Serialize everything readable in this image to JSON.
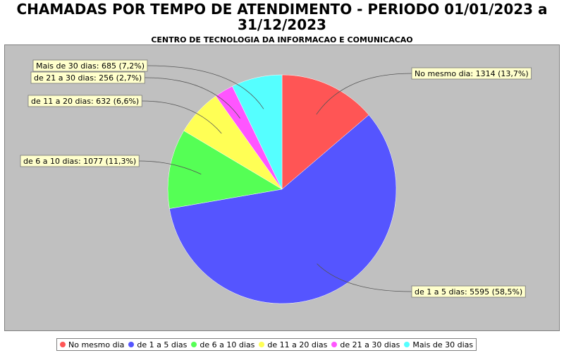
{
  "title": "CHAMADAS POR TEMPO DE ATENDIMENTO - PERIODO 01/01/2023 a 31/12/2023",
  "subtitle": "CENTRO DE TECNOLOGIA DA INFORMACAO E COMUNICACAO",
  "chart_data": {
    "type": "pie",
    "title": "CHAMADAS POR TEMPO DE ATENDIMENTO - PERIODO 01/01/2023 a 31/12/2023",
    "subtitle": "CENTRO DE TECNOLOGIA DA INFORMACAO E COMUNICACAO",
    "legend_position": "bottom",
    "slices": [
      {
        "name": "No mesmo dia",
        "value": 1314,
        "label": "No mesmo dia: 1314 (13,7%)",
        "color": "#ff5555"
      },
      {
        "name": "de 1 a 5 dias",
        "value": 5595,
        "label": "de 1 a 5 dias: 5595 (58,5%)",
        "color": "#5555ff"
      },
      {
        "name": "de 6 a 10 dias",
        "value": 1077,
        "label": "de 6 a 10 dias: 1077 (11,3%)",
        "color": "#55ff55"
      },
      {
        "name": "de 11 a 20 dias",
        "value": 632,
        "label": "de 11 a 20 dias: 632 (6,6%)",
        "color": "#ffff55"
      },
      {
        "name": "de 21 a 30 dias",
        "value": 256,
        "label": "de 21 a 30 dias: 256 (2,7%)",
        "color": "#ff55ff"
      },
      {
        "name": "Mais de 30 dias",
        "value": 685,
        "label": "Mais de 30 dias: 685 (7,2%)",
        "color": "#55ffff"
      }
    ]
  }
}
